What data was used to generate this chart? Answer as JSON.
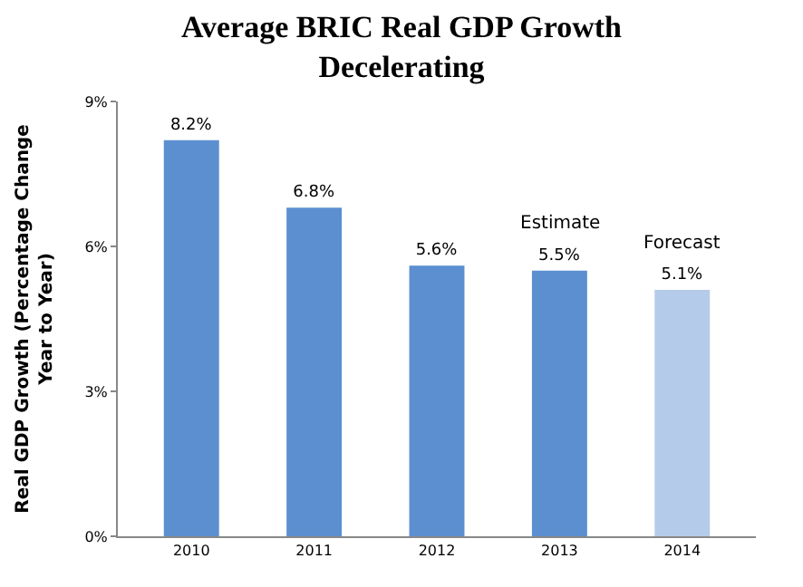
{
  "chart_data": {
    "type": "bar",
    "title": "Average BRIC Real GDP Growth Decelerating",
    "ylabel": "Real GDP Growth (Percentage Change Year to Year)",
    "categories": [
      "2010",
      "2011",
      "2012",
      "2013",
      "2014"
    ],
    "values": [
      8.2,
      6.8,
      5.6,
      5.5,
      5.1
    ],
    "colors": [
      "#5b8fd0",
      "#5b8fd0",
      "#5b8fd0",
      "#5b8fd0",
      "#b4cbea"
    ],
    "value_labels": [
      "8.2%",
      "6.8%",
      "5.6%",
      "5.5%",
      "5.1%"
    ],
    "ylim": [
      0,
      9
    ],
    "yticks": [
      {
        "value": 0,
        "label": "0%"
      },
      {
        "value": 3,
        "label": "3%"
      },
      {
        "value": 6,
        "label": "6%"
      },
      {
        "value": 9,
        "label": "9%"
      }
    ],
    "annotations": [
      {
        "text": "Estimate",
        "x": "2013",
        "y": 5.5
      },
      {
        "text": "Forecast",
        "x": "2014",
        "y": 5.1
      }
    ]
  }
}
